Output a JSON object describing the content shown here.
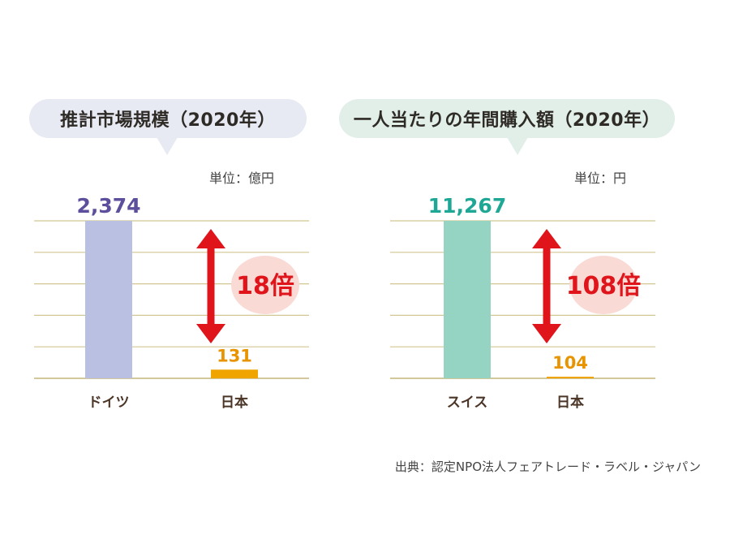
{
  "chart_data": [
    {
      "type": "bar",
      "title": "推計市場規模（2020年）",
      "unit_label": "単位：億円",
      "categories": [
        "ドイツ",
        "日本"
      ],
      "values": [
        2374,
        131
      ],
      "value_labels": [
        "2,374",
        "131"
      ],
      "ratio_label": "18倍",
      "colors": [
        "#b9c0e2",
        "#f0a400"
      ],
      "value_label_colors": [
        "#5d4f9c",
        "#e89400"
      ],
      "ylim": [
        0,
        2374
      ],
      "grid": true
    },
    {
      "type": "bar",
      "title": "一人当たりの年間購入額（2020年）",
      "unit_label": "単位：円",
      "categories": [
        "スイス",
        "日本"
      ],
      "values": [
        11267,
        104
      ],
      "value_labels": [
        "11,267",
        "104"
      ],
      "ratio_label": "108倍",
      "colors": [
        "#95d3c2",
        "#f0a400"
      ],
      "value_label_colors": [
        "#1fa796",
        "#e89400"
      ],
      "ylim": [
        0,
        11267
      ],
      "grid": true
    }
  ],
  "source": "出典：認定NPO法人フェアトレード・ラベル・ジャパン",
  "colors": {
    "arrow": "#e0141b",
    "ratio_bubble": "#f9dad5",
    "gridline": "#d2c692",
    "baseline": "#c3b57a",
    "category_text": "#4a3526"
  }
}
